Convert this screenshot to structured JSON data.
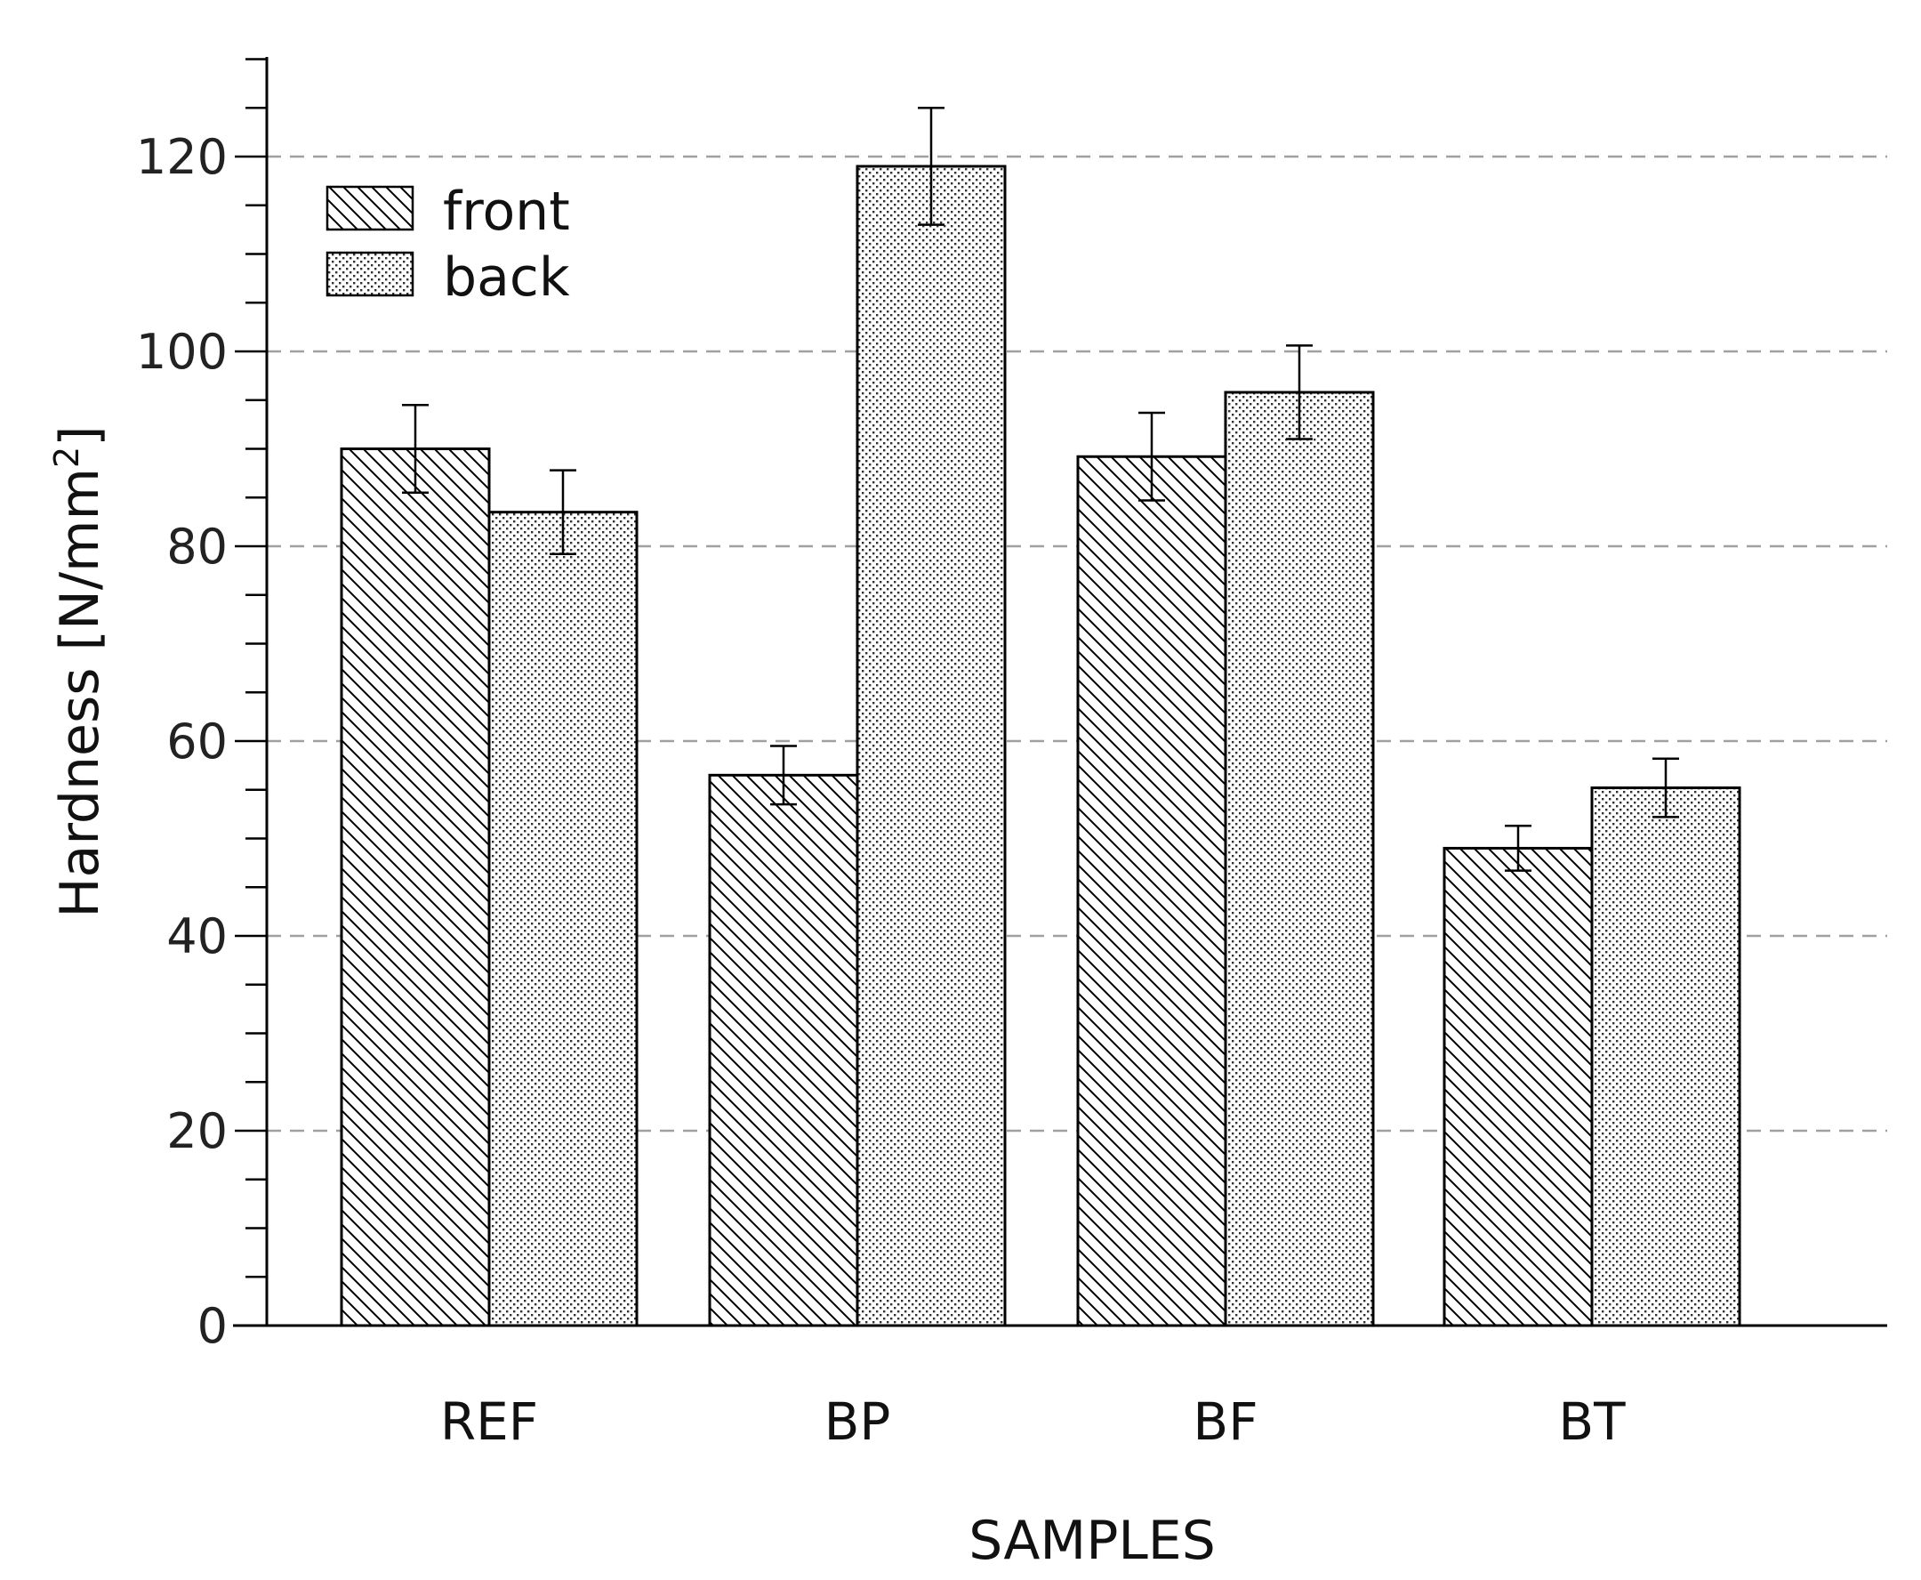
{
  "chart_data": {
    "type": "bar",
    "title": "",
    "xlabel": "SAMPLES",
    "ylabel": "Hardness [N/mm",
    "ylabel_sup": "2",
    "ylabel_close": "]",
    "categories": [
      "REF",
      "BP",
      "BF",
      "BT"
    ],
    "series": [
      {
        "name": "front",
        "pattern": "hatch",
        "values": [
          90,
          56.5,
          89.2,
          49
        ],
        "errors": [
          4.5,
          3,
          4.5,
          2.3
        ]
      },
      {
        "name": "back",
        "pattern": "dots",
        "values": [
          83.5,
          119,
          95.8,
          55.2
        ],
        "errors": [
          4.3,
          6,
          4.8,
          3
        ]
      }
    ],
    "ylim": [
      0,
      130
    ],
    "yticks": [
      0,
      20,
      40,
      60,
      80,
      100,
      120
    ],
    "minor_step": 5,
    "grid": "horizontal dashed",
    "legend": "top-left",
    "colors": {
      "bar_stroke": "#000000",
      "grid": "#a0a0a0",
      "axis": "#000000"
    }
  }
}
